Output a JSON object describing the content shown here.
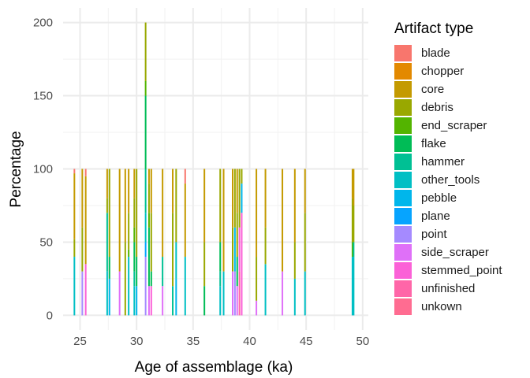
{
  "chart_data": {
    "type": "bar",
    "stacked": true,
    "xlabel": "Age of assemblage (ka)",
    "ylabel": "Percentage",
    "xlim": [
      23.5,
      50.5
    ],
    "ylim": [
      -10,
      210
    ],
    "xticks": [
      25,
      30,
      35,
      40,
      45,
      50
    ],
    "yticks": [
      0,
      50,
      100,
      150,
      200
    ],
    "grid": true,
    "legend_title": "Artifact type",
    "legend_position": "right",
    "series_names": [
      "blade",
      "chopper",
      "core",
      "debris",
      "end_scraper",
      "flake",
      "hammer",
      "other_tools",
      "pebble",
      "plane",
      "point",
      "side_scraper",
      "stemmed_point",
      "unfinished",
      "unkown"
    ],
    "colors": {
      "blade": "#F8766D",
      "chopper": "#E38900",
      "core": "#C49A00",
      "debris": "#99A800",
      "end_scraper": "#53B400",
      "flake": "#00BC56",
      "hammer": "#00C094",
      "other_tools": "#00BFC4",
      "pebble": "#00B6EB",
      "plane": "#06A4FF",
      "point": "#A58AFF",
      "side_scraper": "#DF70F8",
      "stemmed_point": "#FB61D7",
      "unfinished": "#FF66A8",
      "unkown": "#FF6C91"
    },
    "bars": [
      {
        "x": 24.5,
        "segments": [
          [
            "blade",
            3
          ],
          [
            "core",
            45
          ],
          [
            "debris",
            12
          ],
          [
            "other_tools",
            40
          ]
        ]
      },
      {
        "x": 25.2,
        "segments": [
          [
            "core",
            40
          ],
          [
            "debris",
            30
          ],
          [
            "point",
            30
          ]
        ]
      },
      {
        "x": 25.5,
        "segments": [
          [
            "blade",
            5
          ],
          [
            "core",
            60
          ],
          [
            "stemmed_point",
            35
          ]
        ]
      },
      {
        "x": 27.4,
        "segments": [
          [
            "core",
            20
          ],
          [
            "debris",
            10
          ],
          [
            "hammer",
            40
          ],
          [
            "other_tools",
            30
          ]
        ]
      },
      {
        "x": 27.6,
        "segments": [
          [
            "debris",
            60
          ],
          [
            "flake",
            15
          ],
          [
            "pebble",
            25
          ]
        ]
      },
      {
        "x": 28.5,
        "segments": [
          [
            "core",
            70
          ],
          [
            "side_scraper",
            30
          ]
        ]
      },
      {
        "x": 29.0,
        "segments": [
          [
            "core",
            50
          ],
          [
            "debris",
            50
          ]
        ]
      },
      {
        "x": 29.3,
        "segments": [
          [
            "core",
            30
          ],
          [
            "debris",
            25
          ],
          [
            "end_scraper",
            5
          ],
          [
            "other_tools",
            40
          ]
        ]
      },
      {
        "x": 29.8,
        "segments": [
          [
            "core",
            20
          ],
          [
            "debris",
            20
          ],
          [
            "end_scraper",
            10
          ],
          [
            "flake",
            20
          ],
          [
            "hammer",
            10
          ],
          [
            "other_tools",
            20
          ]
        ]
      },
      {
        "x": 30.0,
        "segments": [
          [
            "debris",
            60
          ],
          [
            "flake",
            20
          ],
          [
            "pebble",
            20
          ]
        ]
      },
      {
        "x": 30.8,
        "segments": [
          [
            "debris",
            40
          ],
          [
            "end_scraper",
            10
          ],
          [
            "flake",
            50
          ],
          [
            "hammer",
            30
          ],
          [
            "other_tools",
            20
          ],
          [
            "plane",
            10
          ],
          [
            "point",
            40
          ]
        ]
      },
      {
        "x": 31.1,
        "segments": [
          [
            "core",
            10
          ],
          [
            "debris",
            20
          ],
          [
            "end_scraper",
            10
          ],
          [
            "flake",
            40
          ],
          [
            "side_scraper",
            20
          ]
        ]
      },
      {
        "x": 31.3,
        "segments": [
          [
            "core",
            30
          ],
          [
            "debris",
            40
          ],
          [
            "flake",
            10
          ],
          [
            "stemmed_point",
            20
          ]
        ]
      },
      {
        "x": 32.3,
        "segments": [
          [
            "core",
            60
          ],
          [
            "hammer",
            20
          ],
          [
            "side_scraper",
            20
          ]
        ]
      },
      {
        "x": 33.2,
        "segments": [
          [
            "core",
            30
          ],
          [
            "debris",
            50
          ],
          [
            "hammer",
            20
          ]
        ]
      },
      {
        "x": 33.5,
        "segments": [
          [
            "debris",
            50
          ],
          [
            "other_tools",
            25
          ],
          [
            "pebble",
            25
          ]
        ]
      },
      {
        "x": 34.3,
        "segments": [
          [
            "blade",
            10
          ],
          [
            "core",
            50
          ],
          [
            "other_tools",
            40
          ]
        ]
      },
      {
        "x": 36.0,
        "segments": [
          [
            "core",
            50
          ],
          [
            "debris",
            30
          ],
          [
            "flake",
            20
          ]
        ]
      },
      {
        "x": 37.4,
        "segments": [
          [
            "debris",
            50
          ],
          [
            "flake",
            20
          ],
          [
            "hammer",
            10
          ],
          [
            "other_tools",
            20
          ]
        ]
      },
      {
        "x": 37.7,
        "segments": [
          [
            "core",
            70
          ],
          [
            "other_tools",
            30
          ]
        ]
      },
      {
        "x": 38.5,
        "segments": [
          [
            "core",
            40
          ],
          [
            "debris",
            30
          ],
          [
            "side_scraper",
            30
          ]
        ]
      },
      {
        "x": 38.7,
        "segments": [
          [
            "debris",
            40
          ],
          [
            "pebble",
            30
          ],
          [
            "point",
            30
          ]
        ]
      },
      {
        "x": 38.9,
        "segments": [
          [
            "core",
            30
          ],
          [
            "debris",
            30
          ],
          [
            "flake",
            20
          ],
          [
            "side_scraper",
            20
          ]
        ]
      },
      {
        "x": 39.1,
        "segments": [
          [
            "debris",
            40
          ],
          [
            "stemmed_point",
            30
          ],
          [
            "unfinished",
            30
          ]
        ]
      },
      {
        "x": 39.3,
        "segments": [
          [
            "debris",
            10
          ],
          [
            "pebble",
            20
          ],
          [
            "stemmed_point",
            70
          ]
        ]
      },
      {
        "x": 40.6,
        "segments": [
          [
            "core",
            60
          ],
          [
            "debris",
            30
          ],
          [
            "side_scraper",
            10
          ]
        ]
      },
      {
        "x": 41.4,
        "segments": [
          [
            "core",
            40
          ],
          [
            "debris",
            25
          ],
          [
            "other_tools",
            35
          ]
        ]
      },
      {
        "x": 42.9,
        "segments": [
          [
            "core",
            70
          ],
          [
            "side_scraper",
            30
          ]
        ]
      },
      {
        "x": 44.0,
        "segments": [
          [
            "core",
            50
          ],
          [
            "debris",
            25
          ],
          [
            "other_tools",
            25
          ]
        ]
      },
      {
        "x": 44.9,
        "segments": [
          [
            "core",
            30
          ],
          [
            "debris",
            40
          ],
          [
            "other_tools",
            30
          ]
        ]
      },
      {
        "x": 49.1,
        "segments": [
          [
            "core",
            20
          ],
          [
            "debris",
            30
          ],
          [
            "end_scraper",
            10
          ],
          [
            "other_tools",
            40
          ]
        ]
      },
      {
        "x": 49.2,
        "segments": [
          [
            "core",
            25
          ],
          [
            "debris",
            25
          ],
          [
            "hammer",
            10
          ],
          [
            "other_tools",
            40
          ]
        ]
      }
    ]
  }
}
